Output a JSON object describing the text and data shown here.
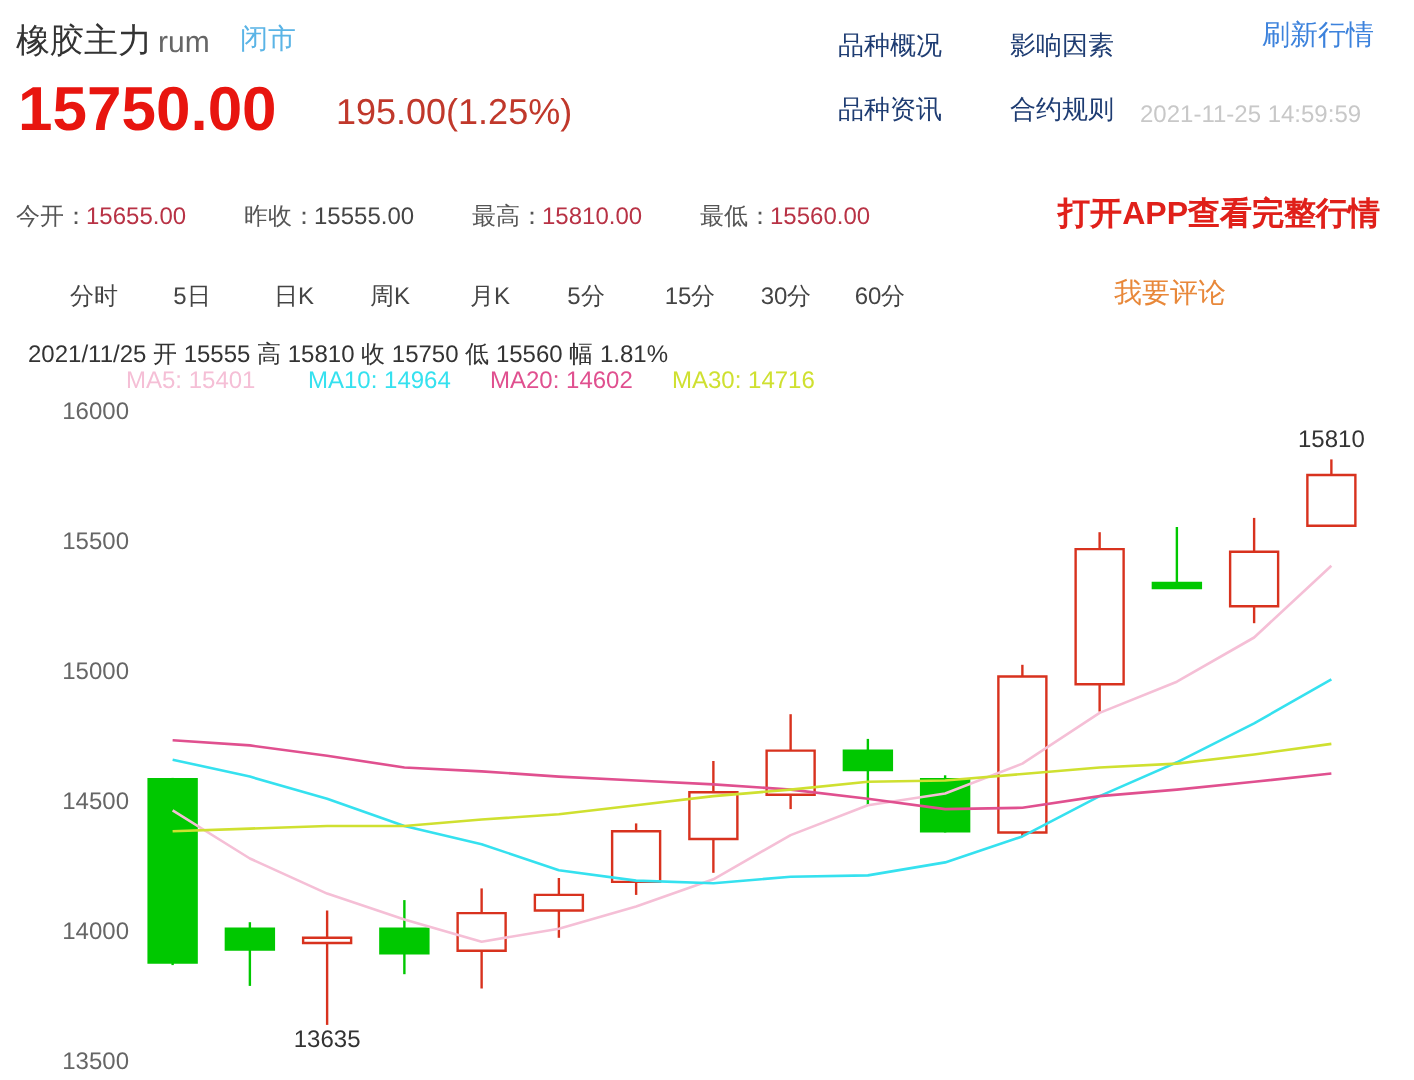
{
  "chart_data": {
    "type": "candlestick",
    "title": "橡胶主力",
    "categories": [
      null,
      null,
      null,
      null,
      null,
      null,
      null,
      null,
      null,
      null,
      null,
      null,
      null,
      null,
      null,
      null
    ],
    "ohlc": [
      [
        14580,
        14585,
        13865,
        13875
      ],
      [
        14005,
        14030,
        13785,
        13925
      ],
      [
        13950,
        14075,
        13635,
        13970
      ],
      [
        14005,
        14115,
        13830,
        13910
      ],
      [
        13920,
        14160,
        13775,
        14065
      ],
      [
        14075,
        14200,
        13970,
        14135
      ],
      [
        14185,
        14410,
        14135,
        14380
      ],
      [
        14350,
        14650,
        14220,
        14530
      ],
      [
        14520,
        14830,
        14465,
        14690
      ],
      [
        14690,
        14735,
        14480,
        14615
      ],
      [
        14580,
        14595,
        14375,
        14380
      ],
      [
        14375,
        15020,
        14360,
        14975
      ],
      [
        14945,
        15530,
        14840,
        15465
      ],
      [
        15335,
        15550,
        15315,
        15315
      ],
      [
        15245,
        15585,
        15180,
        15455
      ],
      [
        15555,
        15810,
        15555,
        15750
      ]
    ],
    "colors": [
      "#00c800",
      "#00c800",
      "#d8321e",
      "#00c800",
      "#d8321e",
      "#d8321e",
      "#d8321e",
      "#d8321e",
      "#d8321e",
      "#00c800",
      "#00c800",
      "#d8321e",
      "#d8321e",
      "#00c800",
      "#d8321e",
      "#d8321e"
    ],
    "series": [
      {
        "type": "line",
        "name": "MA5: 15401",
        "color": "#f5bfd6",
        "values": [
          14460,
          14275,
          14140,
          14040,
          13955,
          14005,
          14090,
          14195,
          14365,
          14480,
          14525,
          14640,
          14835,
          14955,
          15125,
          15401
        ]
      },
      {
        "type": "line",
        "name": "MA10: 14964",
        "color": "#35e1ef",
        "values": [
          14655,
          14590,
          14505,
          14400,
          14330,
          14230,
          14190,
          14180,
          14205,
          14210,
          14260,
          14360,
          14515,
          14645,
          14795,
          14964
        ]
      },
      {
        "type": "line",
        "name": "MA20: 14602",
        "color": "#e0508f",
        "values": [
          14730,
          14710,
          14670,
          14625,
          14610,
          14590,
          14575,
          14560,
          14540,
          14505,
          14465,
          14470,
          14515,
          14540,
          14570,
          14602
        ]
      },
      {
        "type": "line",
        "name": "MA30: 14716",
        "color": "#cfe030",
        "values": [
          14380,
          14390,
          14400,
          14400,
          14425,
          14445,
          14480,
          14515,
          14540,
          14570,
          14575,
          14600,
          14625,
          14640,
          14675,
          14716
        ]
      }
    ],
    "ylim": [
      13500,
      16000
    ],
    "yticks": [
      13500,
      14000,
      14500,
      15000,
      15500,
      16000
    ],
    "tick_labels": "y",
    "legend": "top left",
    "annotations": [
      "rum",
      "闭市",
      "品种概况",
      "影响因素",
      "刷新行情",
      "15750.00",
      "195.00(1.25%)",
      "品种资讯",
      "合约规则",
      "2021-11-25 14:59:59",
      "今开：",
      "15655.00",
      "昨收：",
      "15555.00",
      "最高：",
      "15810.00",
      "最低：",
      "15560.00",
      "打开APP查看完整行情",
      "分时",
      "5日",
      "日K",
      "周K",
      "月K",
      "5分",
      "15分",
      "30分",
      "60分",
      "我要评论",
      "2021/11/25 开 15555 高 15810 收 15750 低 15560 幅 1.81%",
      {
        "text": "13635",
        "y": 13635
      },
      {
        "text": "15810",
        "y": 15810
      }
    ]
  }
}
